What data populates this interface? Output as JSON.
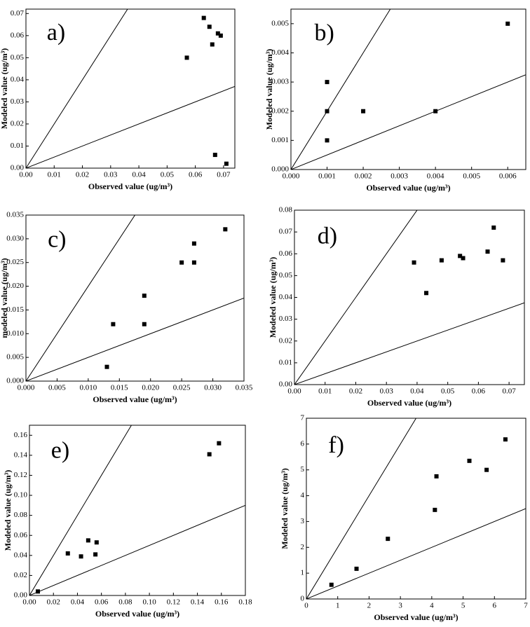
{
  "chart_data": [
    {
      "type": "scatter",
      "label": "a)",
      "xlabel": "Observed value (ug/m³)",
      "ylabel": "Modeled value (ug/m³)",
      "color": "#000000",
      "x": [
        0.057,
        0.063,
        0.065,
        0.066,
        0.068,
        0.069,
        0.067,
        0.071
      ],
      "values": [
        0.05,
        0.068,
        0.064,
        0.056,
        0.061,
        0.06,
        0.006,
        0.002
      ],
      "xlim": [
        0,
        0.074
      ],
      "ylim": [
        0,
        0.072
      ],
      "xticks": [
        {
          "value": 0,
          "label": "0.00"
        },
        0.01,
        0.02,
        0.03,
        0.04,
        0.05,
        0.06,
        0.07
      ],
      "yticks": [
        {
          "value": 0,
          "label": "0.00"
        },
        0.01,
        0.02,
        0.03,
        0.04,
        0.05,
        0.06,
        0.07
      ],
      "reference_lines": [
        {
          "slope": 2
        },
        {
          "slope": 0.5
        }
      ]
    },
    {
      "type": "scatter",
      "label": "b)",
      "xlabel": "Observed value (ug/m³)",
      "ylabel": "Modeled value (ug/m³)",
      "color": "#000000",
      "x": [
        0.001,
        0.001,
        0.001,
        0.002,
        0.004,
        0.006
      ],
      "values": [
        0.003,
        0.002,
        0.001,
        0.002,
        0.002,
        0.005
      ],
      "xlim": [
        0,
        0.0065
      ],
      "ylim": [
        0,
        0.0055
      ],
      "xticks": [
        {
          "value": 0,
          "label": "0.000"
        },
        0.001,
        0.002,
        0.003,
        0.004,
        0.005,
        0.006
      ],
      "yticks": [
        {
          "value": 0,
          "label": "0.000"
        },
        0.001,
        0.002,
        0.003,
        0.004,
        0.005
      ],
      "reference_lines": [
        {
          "slope": 2
        },
        {
          "slope": 0.5
        }
      ]
    },
    {
      "type": "scatter",
      "label": "c)",
      "xlabel": "Observed value (ug/m³)",
      "ylabel": "modeled value (ug/m³)",
      "color": "#000000",
      "x": [
        0.013,
        0.014,
        0.019,
        0.019,
        0.025,
        0.027,
        0.027,
        0.032
      ],
      "values": [
        0.003,
        0.012,
        0.018,
        0.012,
        0.025,
        0.029,
        0.025,
        0.032
      ],
      "xlim": [
        0,
        0.035
      ],
      "ylim": [
        0,
        0.035
      ],
      "xticks": [
        {
          "value": 0,
          "label": "0.000"
        },
        0.005,
        {
          "value": 0.01,
          "label": "0.010"
        },
        0.015,
        {
          "value": 0.02,
          "label": "0.020"
        },
        0.025,
        {
          "value": 0.03,
          "label": "0.030"
        },
        0.035
      ],
      "yticks": [
        {
          "value": 0,
          "label": "0.000"
        },
        0.005,
        {
          "value": 0.01,
          "label": "0.010"
        },
        0.015,
        {
          "value": 0.02,
          "label": "0.020"
        },
        0.025,
        {
          "value": 0.03,
          "label": "0.030"
        },
        0.035
      ],
      "reference_lines": [
        {
          "slope": 2
        },
        {
          "slope": 0.5
        }
      ]
    },
    {
      "type": "scatter",
      "label": "d)",
      "xlabel": "Observed value (ug/m³)",
      "ylabel": "Modeled value (ug/m³)",
      "color": "#000000",
      "x": [
        0.039,
        0.043,
        0.048,
        0.054,
        0.055,
        0.063,
        0.065,
        0.068
      ],
      "values": [
        0.056,
        0.042,
        0.057,
        0.059,
        0.058,
        0.061,
        0.072,
        0.057
      ],
      "xlim": [
        0,
        0.075
      ],
      "ylim": [
        0,
        0.08
      ],
      "xticks": [
        {
          "value": 0,
          "label": "0.00"
        },
        0.01,
        0.02,
        0.03,
        0.04,
        0.05,
        0.06,
        0.07
      ],
      "yticks": [
        {
          "value": 0,
          "label": "0.00"
        },
        0.01,
        0.02,
        0.03,
        0.04,
        0.05,
        0.06,
        0.07,
        0.08
      ],
      "reference_lines": [
        {
          "slope": 2
        },
        {
          "slope": 0.5
        }
      ]
    },
    {
      "type": "scatter",
      "label": "e)",
      "xlabel": "Observed value (ug/m³)",
      "ylabel": "Modeled value (ug/m³)",
      "color": "#000000",
      "x": [
        0.007,
        0.032,
        0.043,
        0.049,
        0.056,
        0.055,
        0.15,
        0.158
      ],
      "values": [
        0.004,
        0.042,
        0.039,
        0.055,
        0.053,
        0.041,
        0.141,
        0.152
      ],
      "xlim": [
        0,
        0.18
      ],
      "ylim": [
        0,
        0.17
      ],
      "xticks": [
        {
          "value": 0,
          "label": "0.00"
        },
        0.02,
        0.04,
        0.06,
        0.08,
        {
          "value": 0.1,
          "label": "0.10"
        },
        0.12,
        0.14,
        0.16,
        0.18
      ],
      "yticks": [
        {
          "value": 0,
          "label": "0.00"
        },
        0.02,
        0.04,
        0.06,
        0.08,
        {
          "value": 0.1,
          "label": "0.10"
        },
        0.12,
        0.14,
        0.16
      ],
      "reference_lines": [
        {
          "slope": 2
        },
        {
          "slope": 0.5
        }
      ]
    },
    {
      "type": "scatter",
      "label": "f)",
      "xlabel": "Observed value (ug/m³)",
      "ylabel": "Modeled value (ug/m³)",
      "color": "#000000",
      "x": [
        0.8,
        1.6,
        2.6,
        4.1,
        4.15,
        5.2,
        5.75,
        6.35
      ],
      "values": [
        0.55,
        1.17,
        2.33,
        3.45,
        4.75,
        5.35,
        5.0,
        6.18
      ],
      "xlim": [
        0,
        7
      ],
      "ylim": [
        0,
        7
      ],
      "xticks": [
        0,
        1,
        2,
        3,
        4,
        5,
        6,
        7
      ],
      "yticks": [
        0,
        1,
        2,
        3,
        4,
        5,
        6,
        7
      ],
      "reference_lines": [
        {
          "slope": 2
        },
        {
          "slope": 0.5
        }
      ]
    }
  ]
}
